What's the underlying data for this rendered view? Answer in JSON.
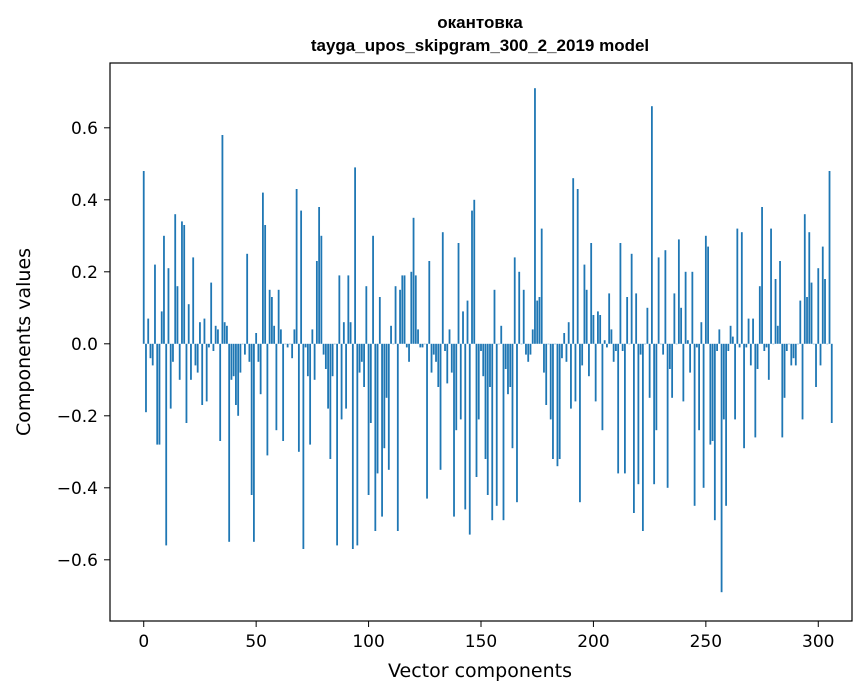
{
  "chart_data": {
    "type": "bar",
    "title": "окантовка",
    "subtitle": "tayga_upos_skipgram_300_2_2019 model",
    "xlabel": "Vector components",
    "ylabel": "Components values",
    "xlim": [
      -15,
      315
    ],
    "ylim": [
      -0.77,
      0.78
    ],
    "xticks": [
      0,
      50,
      100,
      150,
      200,
      250,
      300
    ],
    "yticks": [
      -0.6,
      -0.4,
      -0.2,
      0.0,
      0.2,
      0.4,
      0.6
    ],
    "xtick_labels": [
      "0",
      "50",
      "100",
      "150",
      "200",
      "250",
      "300"
    ],
    "ytick_labels": [
      "−0.6",
      "−0.4",
      "−0.2",
      "0.0",
      "0.2",
      "0.4",
      "0.6"
    ],
    "grid": false,
    "bar_color": "#1f77b4",
    "values": [
      0.48,
      -0.19,
      0.07,
      -0.04,
      -0.06,
      0.22,
      -0.28,
      -0.28,
      0.09,
      0.3,
      -0.56,
      0.21,
      -0.18,
      -0.05,
      0.36,
      0.16,
      -0.1,
      0.34,
      0.33,
      -0.22,
      0.11,
      -0.1,
      0.24,
      -0.06,
      -0.08,
      0.06,
      -0.17,
      0.07,
      -0.16,
      -0.01,
      0.17,
      -0.02,
      0.05,
      0.04,
      -0.27,
      0.58,
      0.06,
      0.05,
      -0.55,
      -0.1,
      -0.09,
      -0.17,
      -0.2,
      -0.08,
      0.0,
      -0.03,
      0.25,
      -0.05,
      -0.42,
      -0.55,
      0.03,
      -0.05,
      -0.14,
      0.42,
      0.33,
      -0.31,
      0.15,
      0.13,
      0.05,
      -0.24,
      0.15,
      0.04,
      -0.27,
      0.0,
      -0.01,
      0.0,
      -0.04,
      0.04,
      0.43,
      -0.3,
      0.37,
      -0.57,
      -0.01,
      -0.09,
      -0.28,
      0.04,
      -0.1,
      0.23,
      0.38,
      0.3,
      -0.03,
      -0.07,
      -0.18,
      -0.32,
      -0.09,
      0.0,
      -0.56,
      0.19,
      -0.21,
      0.06,
      -0.18,
      0.19,
      0.06,
      -0.57,
      0.49,
      -0.56,
      -0.08,
      -0.05,
      -0.12,
      0.16,
      -0.42,
      -0.22,
      0.3,
      -0.52,
      -0.36,
      0.13,
      -0.48,
      -0.29,
      -0.15,
      -0.35,
      0.05,
      0.0,
      0.16,
      -0.52,
      0.15,
      0.19,
      0.19,
      -0.01,
      -0.05,
      0.2,
      0.35,
      0.19,
      0.04,
      -0.01,
      -0.01,
      0.0,
      -0.43,
      0.23,
      -0.08,
      -0.03,
      -0.05,
      -0.12,
      -0.35,
      0.31,
      -0.02,
      -0.11,
      0.04,
      -0.08,
      -0.48,
      -0.24,
      0.28,
      -0.21,
      0.09,
      -0.46,
      0.12,
      -0.53,
      0.37,
      0.4,
      -0.37,
      -0.21,
      -0.02,
      -0.09,
      -0.32,
      -0.42,
      -0.12,
      -0.49,
      0.15,
      -0.45,
      0.0,
      0.05,
      -0.49,
      -0.07,
      -0.14,
      -0.12,
      -0.29,
      0.24,
      -0.44,
      0.2,
      0.0,
      0.15,
      -0.03,
      -0.05,
      -0.03,
      0.04,
      0.71,
      0.12,
      0.13,
      0.32,
      -0.08,
      -0.17,
      0.0,
      -0.21,
      -0.32,
      0.0,
      -0.34,
      -0.32,
      -0.04,
      0.03,
      -0.05,
      0.06,
      -0.18,
      0.46,
      -0.16,
      0.43,
      -0.44,
      -0.06,
      0.22,
      0.15,
      -0.09,
      0.28,
      0.08,
      -0.16,
      0.09,
      0.08,
      -0.24,
      0.01,
      -0.01,
      0.14,
      0.04,
      -0.05,
      -0.02,
      -0.36,
      0.28,
      -0.02,
      -0.36,
      0.13,
      0.0,
      0.25,
      -0.47,
      0.14,
      -0.39,
      -0.03,
      -0.52,
      0.0,
      0.1,
      -0.15,
      0.66,
      -0.39,
      -0.24,
      0.24,
      0.0,
      -0.03,
      0.26,
      -0.4,
      -0.07,
      -0.15,
      0.14,
      0.0,
      0.29,
      0.1,
      -0.16,
      0.2,
      0.01,
      -0.08,
      0.2,
      -0.45,
      -0.01,
      -0.24,
      0.06,
      -0.4,
      0.3,
      0.27,
      -0.28,
      -0.27,
      -0.49,
      -0.02,
      0.04,
      -0.69,
      -0.21,
      -0.45,
      -0.02,
      0.05,
      0.02,
      -0.21,
      0.32,
      -0.01,
      0.31,
      -0.29,
      -0.01,
      0.07,
      -0.06,
      0.07,
      -0.26,
      -0.07,
      0.16,
      0.38,
      -0.02,
      -0.01,
      -0.1,
      0.32,
      0.0,
      0.18,
      0.05,
      0.23,
      -0.26,
      -0.15,
      -0.02,
      0.0,
      -0.06,
      -0.04,
      -0.06,
      0.0,
      0.12,
      -0.21,
      0.36,
      0.13,
      0.31,
      0.17,
      0.0,
      -0.12,
      0.21,
      -0.06,
      0.27,
      0.18,
      0.0,
      0.48,
      -0.22
    ]
  }
}
